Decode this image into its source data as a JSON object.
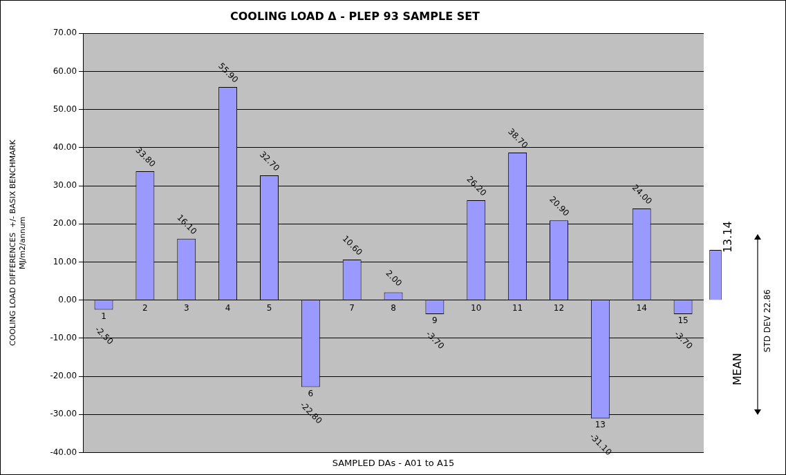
{
  "chart_data": [
    {
      "type": "bar",
      "title": "COOLING LOAD Δ - PLEP 93 SAMPLE SET",
      "xlabel": "SAMPLED DAs - A01 to A15",
      "ylabel": "COOLING LOAD DIFFERENCES  +/- BASIX BENCHMARK\nMJ/m2/annum",
      "categories": [
        "1",
        "2",
        "3",
        "4",
        "5",
        "6",
        "7",
        "8",
        "9",
        "10",
        "11",
        "12",
        "13",
        "14",
        "15"
      ],
      "values": [
        -2.5,
        33.8,
        16.1,
        55.9,
        32.7,
        -22.8,
        10.6,
        2.0,
        -3.7,
        26.2,
        38.7,
        20.9,
        -31.1,
        24.0,
        -3.7
      ],
      "value_labels": [
        "-2.50",
        "33.80",
        "16.10",
        "55.90",
        "32.70",
        "-22.80",
        "10.60",
        "2.00",
        "-3.70",
        "26.20",
        "38.70",
        "20.90",
        "-31.10",
        "24.00",
        "-3.70"
      ],
      "color": "#9999ff",
      "ylim": [
        -40,
        70
      ],
      "yticks": [
        {
          "value": -40,
          "label": "-40.00"
        },
        {
          "value": -30,
          "label": "-30.00"
        },
        {
          "value": -20,
          "label": "-20.00"
        },
        {
          "value": -10,
          "label": "-10.00"
        },
        {
          "value": 0,
          "label": "0.00"
        },
        {
          "value": 10,
          "label": "10.00"
        },
        {
          "value": 20,
          "label": "20.00"
        },
        {
          "value": 30,
          "label": "30.00"
        },
        {
          "value": 40,
          "label": "40.00"
        },
        {
          "value": 50,
          "label": "50.00"
        },
        {
          "value": 60,
          "label": "60.00"
        },
        {
          "value": 70,
          "label": "70.00"
        }
      ],
      "grid": "y"
    },
    {
      "type": "bar",
      "categories": [
        null
      ],
      "values": [
        13.14
      ],
      "value_labels": [
        "13.14"
      ],
      "color": "#9999ff",
      "ylim": [
        -40,
        70
      ],
      "tick_labels": false,
      "annotations": [
        "MEAN",
        "STD DEV 22.86"
      ]
    }
  ]
}
